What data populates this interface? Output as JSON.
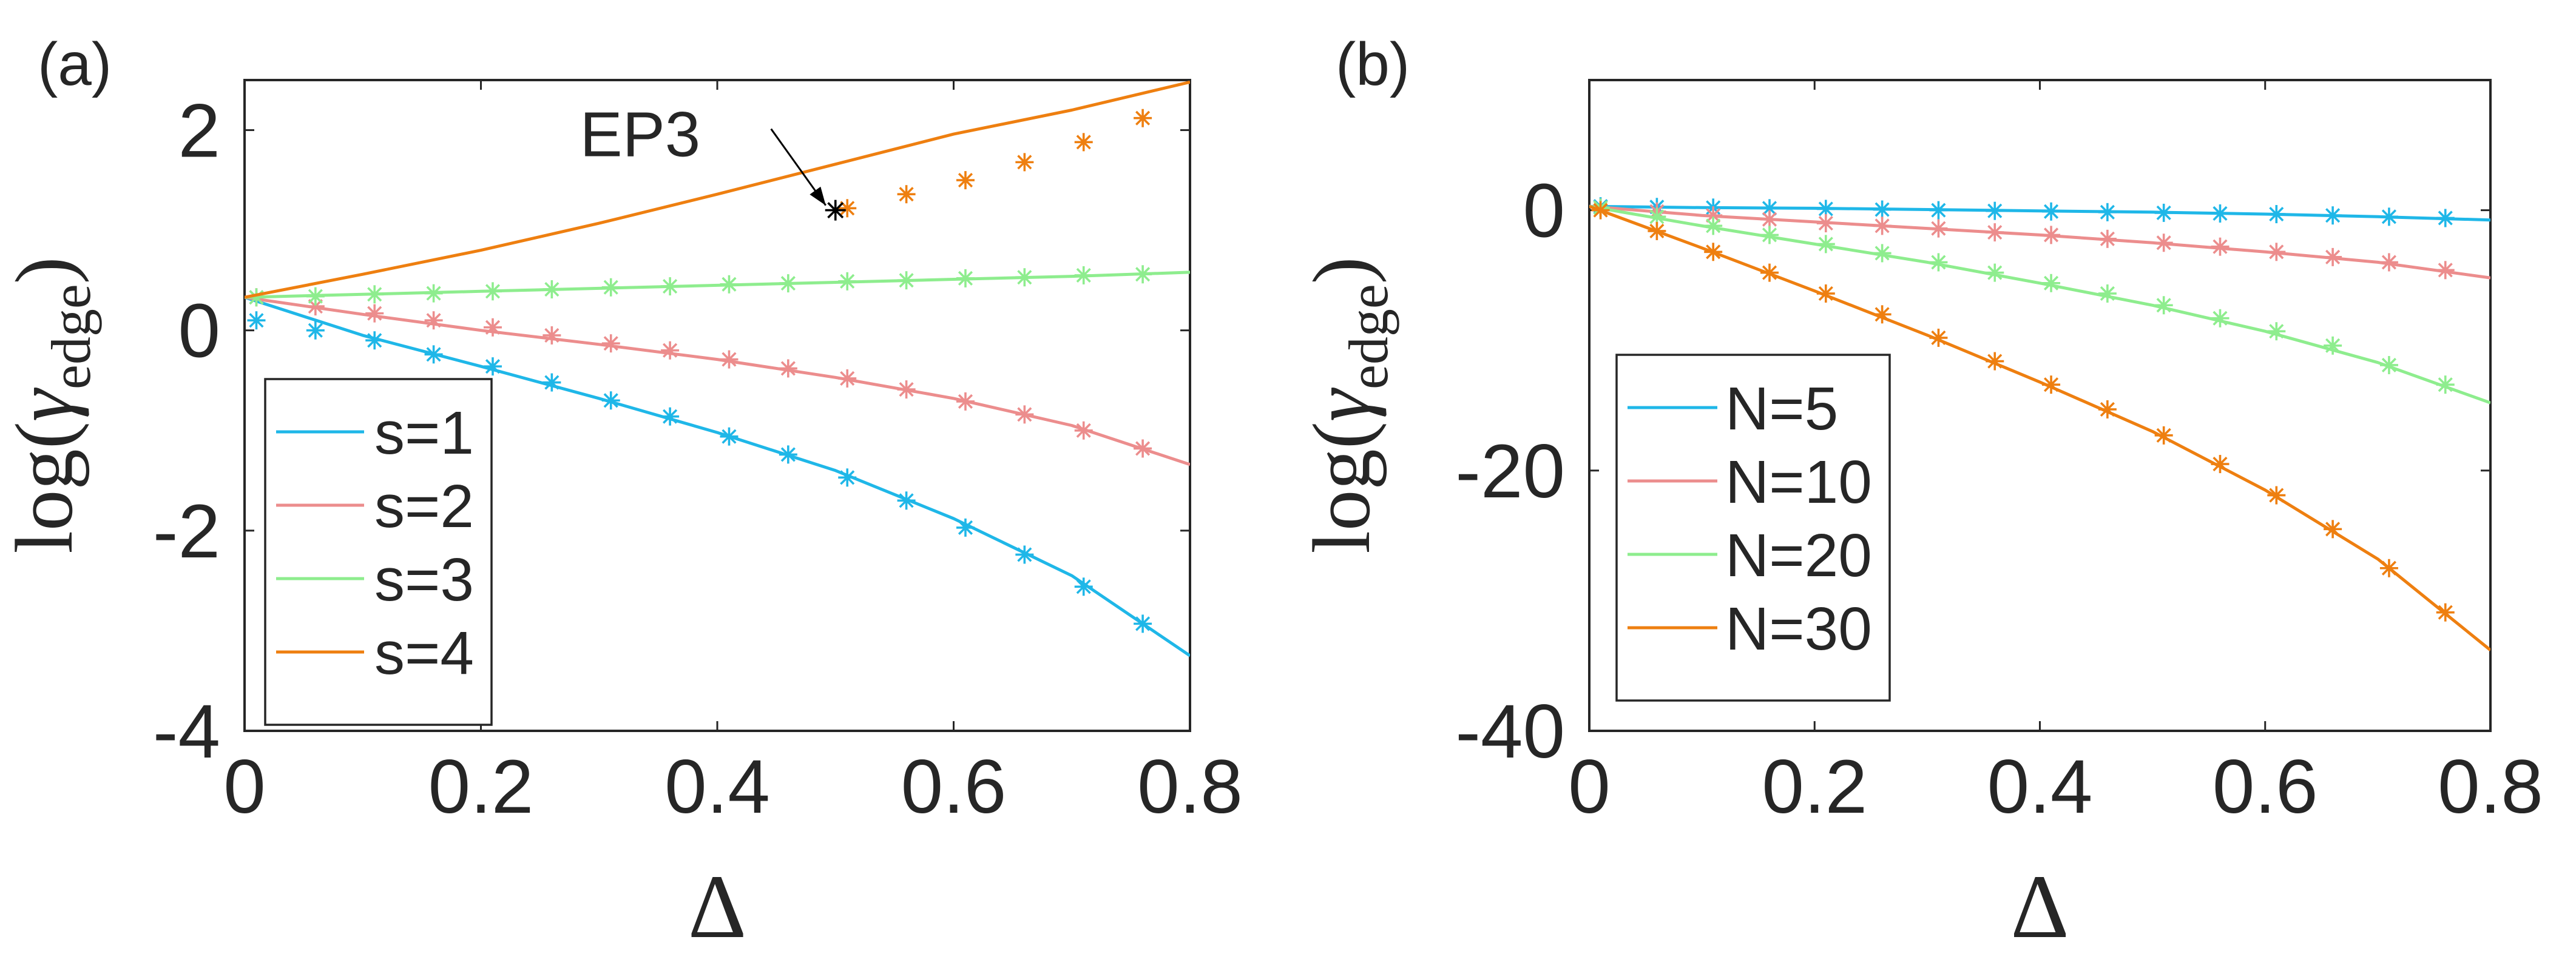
{
  "colors": {
    "s1": "#1fb7e8",
    "s2": "#ec8d8d",
    "s3": "#8eed8e",
    "s4": "#ee7f10",
    "axis": "#262626",
    "ep_marker": "#000000"
  },
  "chart_data": [
    {
      "panel_label": "(a)",
      "type": "line",
      "xlabel": "Δ",
      "ylabel_prefix": "log(",
      "ylabel_symbol": "γ",
      "ylabel_sub": "edge",
      "ylabel_suffix": ")",
      "xlim": [
        0,
        0.8
      ],
      "ylim": [
        -4,
        2.5
      ],
      "xticks": [
        0,
        0.2,
        0.4,
        0.6,
        0.8
      ],
      "xtick_labels": [
        "0",
        "0.2",
        "0.4",
        "0.6",
        "0.8"
      ],
      "yticks": [
        -4,
        -2,
        0,
        2
      ],
      "ytick_labels": [
        "-4",
        "-2",
        "0",
        "2"
      ],
      "legend_position": "bottom-left",
      "series": [
        {
          "name": "s=1",
          "color_key": "s1",
          "line_x": [
            0,
            0.1,
            0.2,
            0.3,
            0.4,
            0.5,
            0.6,
            0.7,
            0.8
          ],
          "line_y": [
            0.33,
            -0.05,
            -0.36,
            -0.68,
            -1.02,
            -1.4,
            -1.88,
            -2.45,
            -3.25
          ],
          "marker_x": [
            0.01,
            0.06,
            0.11,
            0.16,
            0.21,
            0.26,
            0.31,
            0.36,
            0.41,
            0.46,
            0.51,
            0.56,
            0.61,
            0.66,
            0.71,
            0.76
          ],
          "marker_y": [
            0.1,
            0.0,
            -0.1,
            -0.24,
            -0.36,
            -0.52,
            -0.7,
            -0.86,
            -1.06,
            -1.24,
            -1.47,
            -1.7,
            -1.97,
            -2.24,
            -2.56,
            -2.93
          ]
        },
        {
          "name": "s=2",
          "color_key": "s2",
          "line_x": [
            0,
            0.1,
            0.2,
            0.3,
            0.4,
            0.5,
            0.6,
            0.7,
            0.8
          ],
          "line_y": [
            0.33,
            0.16,
            0.0,
            -0.14,
            -0.29,
            -0.47,
            -0.68,
            -0.95,
            -1.34
          ],
          "marker_x": [
            0.01,
            0.06,
            0.11,
            0.16,
            0.21,
            0.26,
            0.31,
            0.36,
            0.41,
            0.46,
            0.51,
            0.56,
            0.61,
            0.66,
            0.71,
            0.76
          ],
          "marker_y": [
            0.33,
            0.24,
            0.17,
            0.1,
            0.03,
            -0.05,
            -0.13,
            -0.2,
            -0.29,
            -0.38,
            -0.48,
            -0.59,
            -0.71,
            -0.84,
            -1.0,
            -1.18
          ]
        },
        {
          "name": "s=3",
          "color_key": "s3",
          "line_x": [
            0,
            0.1,
            0.2,
            0.3,
            0.4,
            0.5,
            0.6,
            0.7,
            0.8
          ],
          "line_y": [
            0.33,
            0.36,
            0.39,
            0.42,
            0.45,
            0.48,
            0.51,
            0.54,
            0.58
          ],
          "marker_x": [
            0.01,
            0.06,
            0.11,
            0.16,
            0.21,
            0.26,
            0.31,
            0.36,
            0.41,
            0.46,
            0.51,
            0.56,
            0.61,
            0.66,
            0.71,
            0.76
          ],
          "marker_y": [
            0.33,
            0.34,
            0.36,
            0.37,
            0.39,
            0.41,
            0.43,
            0.44,
            0.46,
            0.47,
            0.49,
            0.5,
            0.52,
            0.53,
            0.55,
            0.56
          ]
        },
        {
          "name": "s=4",
          "color_key": "s4",
          "line_x": [
            0,
            0.1,
            0.2,
            0.3,
            0.4,
            0.5,
            0.6,
            0.7,
            0.8
          ],
          "line_y": [
            0.33,
            0.56,
            0.8,
            1.07,
            1.36,
            1.66,
            1.96,
            2.2,
            2.48
          ],
          "marker_x": [
            0.51,
            0.56,
            0.61,
            0.66,
            0.71,
            0.76
          ],
          "marker_y": [
            1.22,
            1.36,
            1.5,
            1.68,
            1.88,
            2.12
          ]
        }
      ],
      "annotation": {
        "text": "EP3",
        "x": 0.5,
        "y": 1.2,
        "text_x": 0.33,
        "text_y": 1.8
      }
    },
    {
      "panel_label": "(b)",
      "type": "line",
      "xlabel": "Δ",
      "ylabel_prefix": "log(",
      "ylabel_symbol": "γ",
      "ylabel_sub": "edge",
      "ylabel_suffix": ")",
      "xlim": [
        0,
        0.8
      ],
      "ylim": [
        -40,
        10
      ],
      "xticks": [
        0,
        0.2,
        0.4,
        0.6,
        0.8
      ],
      "xtick_labels": [
        "0",
        "0.2",
        "0.4",
        "0.6",
        "0.8"
      ],
      "yticks": [
        -40,
        -20,
        0
      ],
      "ytick_labels": [
        "-40",
        "-20",
        "0"
      ],
      "legend_position": "left",
      "series": [
        {
          "name": "N=5",
          "color_key": "s1",
          "line_x": [
            0,
            0.1,
            0.2,
            0.3,
            0.4,
            0.5,
            0.6,
            0.7,
            0.8
          ],
          "line_y": [
            0.3,
            0.2,
            0.15,
            0.05,
            -0.05,
            -0.15,
            -0.3,
            -0.5,
            -0.75
          ],
          "marker_x": [
            0.01,
            0.06,
            0.11,
            0.16,
            0.21,
            0.26,
            0.31,
            0.36,
            0.41,
            0.46,
            0.51,
            0.56,
            0.61,
            0.66,
            0.71,
            0.76
          ],
          "marker_y": [
            0.3,
            0.25,
            0.2,
            0.15,
            0.1,
            0.05,
            0.0,
            -0.05,
            -0.1,
            -0.15,
            -0.2,
            -0.25,
            -0.3,
            -0.4,
            -0.5,
            -0.6
          ]
        },
        {
          "name": "N=10",
          "color_key": "s2",
          "line_x": [
            0,
            0.1,
            0.2,
            0.3,
            0.4,
            0.5,
            0.6,
            0.7,
            0.8
          ],
          "line_y": [
            0.3,
            -0.4,
            -0.9,
            -1.4,
            -1.9,
            -2.5,
            -3.2,
            -4.0,
            -5.2
          ],
          "marker_x": [
            0.01,
            0.06,
            0.11,
            0.16,
            0.21,
            0.26,
            0.31,
            0.36,
            0.41,
            0.46,
            0.51,
            0.56,
            0.61,
            0.66,
            0.71,
            0.76
          ],
          "marker_y": [
            0.2,
            -0.1,
            -0.4,
            -0.7,
            -1.0,
            -1.2,
            -1.4,
            -1.7,
            -1.9,
            -2.2,
            -2.5,
            -2.8,
            -3.2,
            -3.6,
            -4.0,
            -4.6
          ]
        },
        {
          "name": "N=20",
          "color_key": "s3",
          "line_x": [
            0,
            0.1,
            0.2,
            0.3,
            0.4,
            0.5,
            0.6,
            0.7,
            0.8
          ],
          "line_y": [
            0.3,
            -1.2,
            -2.6,
            -4.0,
            -5.6,
            -7.3,
            -9.3,
            -11.7,
            -14.8
          ],
          "marker_x": [
            0.01,
            0.06,
            0.11,
            0.16,
            0.21,
            0.26,
            0.31,
            0.36,
            0.41,
            0.46,
            0.51,
            0.56,
            0.61,
            0.66,
            0.71,
            0.76
          ],
          "marker_y": [
            0.2,
            -0.5,
            -1.2,
            -1.9,
            -2.6,
            -3.3,
            -4.0,
            -4.8,
            -5.6,
            -6.4,
            -7.3,
            -8.3,
            -9.3,
            -10.4,
            -11.9,
            -13.4
          ]
        },
        {
          "name": "N=30",
          "color_key": "s4",
          "line_x": [
            0,
            0.1,
            0.2,
            0.3,
            0.4,
            0.5,
            0.6,
            0.7,
            0.8
          ],
          "line_y": [
            0.3,
            -2.9,
            -6.2,
            -9.6,
            -13.2,
            -17.0,
            -21.5,
            -26.8,
            -33.8
          ],
          "marker_x": [
            0.01,
            0.06,
            0.11,
            0.16,
            0.21,
            0.26,
            0.31,
            0.36,
            0.41,
            0.46,
            0.51,
            0.56,
            0.61,
            0.66,
            0.71,
            0.76
          ],
          "marker_y": [
            0.0,
            -1.6,
            -3.2,
            -4.8,
            -6.4,
            -8.0,
            -9.8,
            -11.6,
            -13.4,
            -15.3,
            -17.3,
            -19.5,
            -21.9,
            -24.5,
            -27.5,
            -30.9
          ]
        }
      ]
    }
  ]
}
